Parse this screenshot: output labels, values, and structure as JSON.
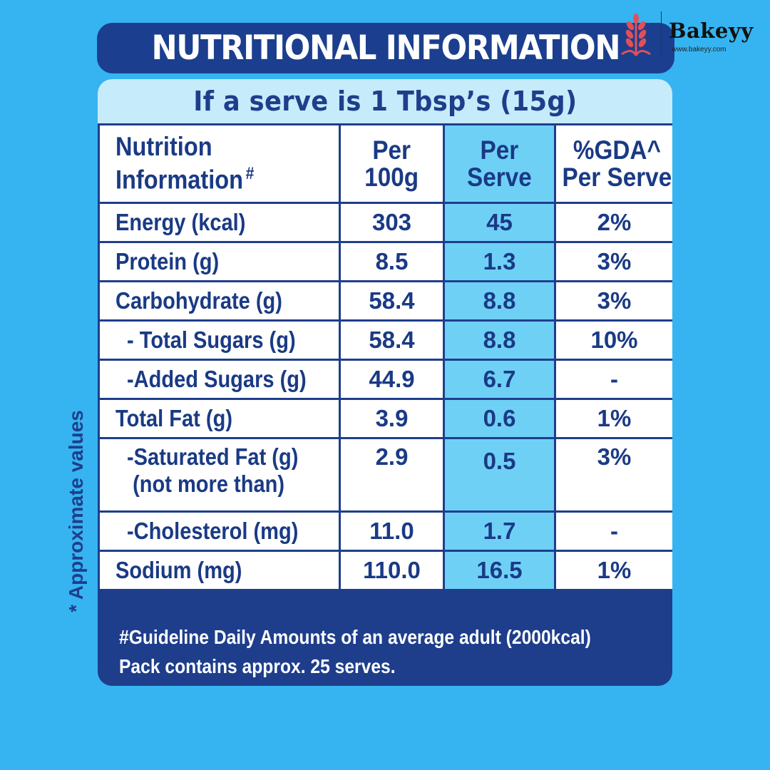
{
  "header": {
    "title": "NUTRITIONAL INFORMATION"
  },
  "logo": {
    "brand": "Bakeyy",
    "url": "www.bakeyy.com",
    "icon": "wheat-icon"
  },
  "serve_note": "If a serve is 1 Tbsp’s (15g)",
  "table": {
    "headers": {
      "name_line1": "Nutrition",
      "name_line2": "Information",
      "name_mark": "#",
      "col2_line1": "Per",
      "col2_line2": "100g",
      "col3_line1": "Per",
      "col3_line2": "Serve",
      "col4_line1": "%GDA^",
      "col4_line2": "Per Serve"
    },
    "rows": [
      {
        "name": "Energy (kcal)",
        "per100g": "303",
        "perServe": "45",
        "gda": "2%"
      },
      {
        "name": "Protein (g)",
        "per100g": "8.5",
        "perServe": "1.3",
        "gda": "3%"
      },
      {
        "name": "Carbohydrate (g)",
        "per100g": "58.4",
        "perServe": "8.8",
        "gda": "3%"
      },
      {
        "name": "- Total Sugars (g)",
        "per100g": "58.4",
        "perServe": "8.8",
        "gda": "10%"
      },
      {
        "name": "-Added Sugars (g)",
        "per100g": "44.9",
        "perServe": "6.7",
        "gda": "-"
      },
      {
        "name": "Total Fat (g)",
        "per100g": "3.9",
        "perServe": "0.6",
        "gda": "1%"
      },
      {
        "name": "-Saturated Fat (g)",
        "name_line2": "(not more than)",
        "per100g": "2.9",
        "perServe": "0.5",
        "gda": "3%"
      },
      {
        "name": "-Cholesterol (mg)",
        "per100g": "11.0",
        "perServe": "1.7",
        "gda": "-"
      },
      {
        "name": "Sodium (mg)",
        "per100g": "110.0",
        "perServe": "16.5",
        "gda": "1%"
      }
    ]
  },
  "footnotes": {
    "line1": "#Guideline Daily Amounts of an average adult (2000kcal)",
    "line2": "Pack contains approx. 25 serves."
  },
  "side_note": "* Approximate values",
  "colors": {
    "background": "#36b4f1",
    "navy": "#1e3e8c",
    "light_band": "#c6ebfa",
    "per_serve_column": "#6fd0f6",
    "logo_icon": "#e0505a"
  }
}
